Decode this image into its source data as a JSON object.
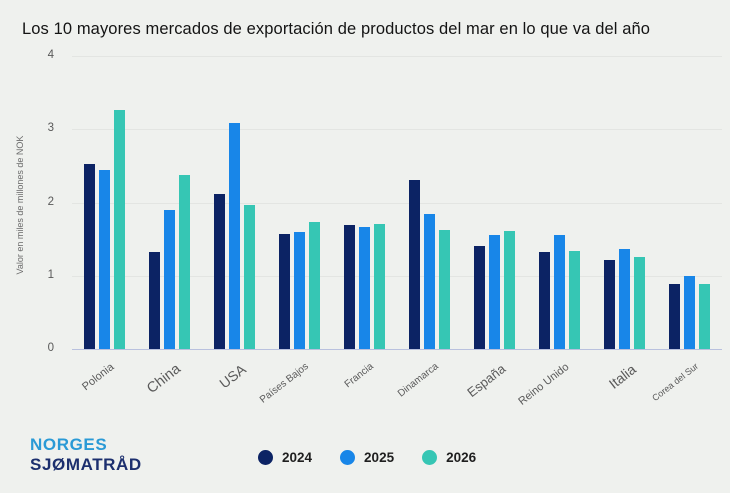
{
  "chart_data": {
    "type": "bar",
    "title": "Los 10 mayores mercados de exportación de productos del mar en lo que va del año",
    "xlabel": "",
    "ylabel": "Valor en miles de millones de NOK",
    "ylim": [
      0,
      4
    ],
    "yticks": [
      0,
      1,
      2,
      3,
      4
    ],
    "grid": true,
    "legend_position": "bottom",
    "categories": [
      "Polonia",
      "China",
      "USA",
      "Países Bajos",
      "Francia",
      "Dinamarca",
      "España",
      "Reino Unido",
      "Italia",
      "Corea del Sur"
    ],
    "category_font_px": [
      11,
      14.5,
      14,
      10,
      10,
      10,
      13,
      11,
      14,
      9
    ],
    "series": [
      {
        "name": "2024",
        "color": "#0c2364",
        "values": [
          2.52,
          1.32,
          2.11,
          1.57,
          1.69,
          2.31,
          1.4,
          1.32,
          1.22,
          0.89
        ]
      },
      {
        "name": "2025",
        "color": "#1886e8",
        "values": [
          2.44,
          1.9,
          3.09,
          1.6,
          1.66,
          1.84,
          1.55,
          1.56,
          1.36,
          1.0
        ]
      },
      {
        "name": "2026",
        "color": "#36c6b4",
        "values": [
          3.26,
          2.37,
          1.97,
          1.74,
          1.71,
          1.62,
          1.61,
          1.34,
          1.25,
          0.89
        ]
      }
    ]
  },
  "logo": {
    "line1": "NORGES",
    "line2": "SJØMATRÅD"
  },
  "colors": {
    "background": "#eff1ee",
    "gridline": "#e3e5e2",
    "baseline": "#b9c1de",
    "title_text": "#141414",
    "axis_text": "#595959",
    "category_text": "#5a5a5a",
    "legend_text": "#1f1f1f",
    "logo_line1": "#2a9ad6",
    "logo_line2": "#1c2f6e"
  }
}
